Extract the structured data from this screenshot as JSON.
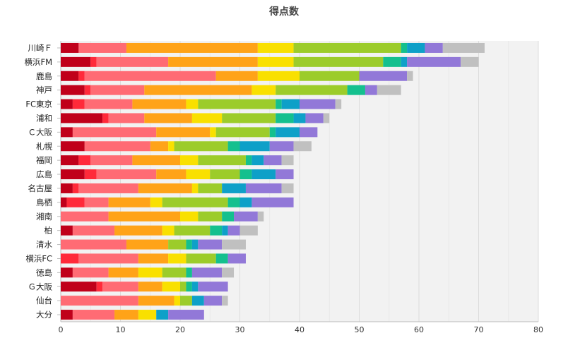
{
  "chart_data": {
    "type": "bar",
    "orientation": "horizontal",
    "stacked": true,
    "title": "得点数",
    "xlabel": "",
    "ylabel": "",
    "xlim": [
      0,
      80
    ],
    "xticks": [
      0,
      10,
      20,
      30,
      40,
      50,
      60,
      70,
      80
    ],
    "grid": true,
    "legend": "none",
    "categories": [
      "川崎Ｆ",
      "横浜FM",
      "鹿島",
      "神戸",
      "FC東京",
      "浦和",
      "Ｃ大阪",
      "札幌",
      "福岡",
      "広島",
      "名古屋",
      "鳥栖",
      "湘南",
      "柏",
      "清水",
      "横浜FC",
      "徳島",
      "Ｇ大阪",
      "仙台",
      "大分"
    ],
    "segment_colors": [
      "#c0001a",
      "#ff2a3a",
      "#ff6b74",
      "#ffa318",
      "#f9e000",
      "#9ccc2a",
      "#14c08e",
      "#0ea0c8",
      "#9278d8",
      "#c0c0c0"
    ],
    "segments": [
      [
        3,
        0,
        8,
        22,
        6,
        18,
        1,
        3,
        3,
        7
      ],
      [
        5,
        1,
        12,
        15,
        6,
        15,
        3,
        1,
        9,
        3
      ],
      [
        3,
        1,
        22,
        7,
        7,
        10,
        0,
        0,
        8,
        1
      ],
      [
        4,
        1,
        9,
        18,
        4,
        12,
        3,
        0,
        2,
        4
      ],
      [
        2,
        2,
        8,
        9,
        2,
        13,
        1,
        3,
        6,
        1
      ],
      [
        7,
        1,
        6,
        8,
        5,
        9,
        3,
        2,
        3,
        1
      ],
      [
        2,
        0,
        14,
        9,
        1,
        9,
        1,
        4,
        3,
        0
      ],
      [
        4,
        0,
        11,
        3,
        1,
        9,
        2,
        5,
        4,
        3
      ],
      [
        3,
        2,
        7,
        8,
        3,
        8,
        1,
        2,
        3,
        2
      ],
      [
        4,
        2,
        10,
        5,
        4,
        5,
        2,
        4,
        3,
        0
      ],
      [
        2,
        1,
        10,
        9,
        1,
        4,
        0,
        4,
        6,
        2
      ],
      [
        1,
        3,
        4,
        7,
        2,
        11,
        2,
        2,
        7,
        0
      ],
      [
        0,
        0,
        8,
        12,
        3,
        4,
        2,
        0,
        4,
        1
      ],
      [
        2,
        0,
        7,
        8,
        2,
        6,
        2,
        1,
        2,
        3
      ],
      [
        0,
        0,
        11,
        7,
        0,
        3,
        1,
        1,
        4,
        4
      ],
      [
        0,
        3,
        10,
        5,
        3,
        5,
        2,
        0,
        3,
        0
      ],
      [
        2,
        0,
        6,
        5,
        4,
        4,
        1,
        0,
        5,
        2
      ],
      [
        6,
        1,
        6,
        4,
        3,
        1,
        1,
        1,
        5,
        0
      ],
      [
        0,
        0,
        13,
        6,
        1,
        2,
        0,
        2,
        3,
        1
      ],
      [
        2,
        0,
        7,
        4,
        3,
        0,
        0,
        2,
        6,
        0
      ]
    ]
  }
}
